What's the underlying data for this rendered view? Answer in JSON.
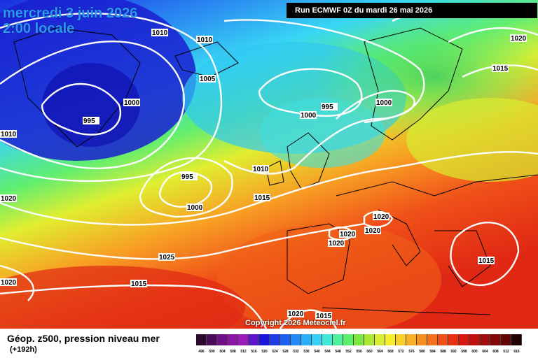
{
  "header": {
    "date_line": "mercredi 3 juin 2026",
    "time_line": "2:00 locale",
    "run_info": "Run ECMWF 0Z du mardi 26 mai 2026"
  },
  "copyright": "Copyright 2026 Meteociel.fr",
  "footer": {
    "title": "Géop. z500, pression niveau mer",
    "subtitle": "(+192h)"
  },
  "isobar_labels": [
    "1010",
    "1010",
    "1005",
    "1000",
    "995",
    "1000",
    "995",
    "1000",
    "1020",
    "1015",
    "1010",
    "995",
    "1000",
    "1015",
    "1010",
    "1020",
    "1020",
    "1020",
    "1020",
    "1020",
    "1025",
    "1015",
    "1020",
    "1015",
    "1015",
    "1020"
  ],
  "scale": {
    "values": [
      "496",
      "500",
      "504",
      "508",
      "512",
      "516",
      "520",
      "524",
      "528",
      "532",
      "536",
      "540",
      "544",
      "548",
      "552",
      "556",
      "560",
      "564",
      "568",
      "572",
      "576",
      "580",
      "584",
      "588",
      "592",
      "596",
      "600",
      "604",
      "608",
      "612",
      "616"
    ],
    "colors": [
      "#2b0a2e",
      "#4a0c5a",
      "#6e1086",
      "#8a16a8",
      "#9a1cb8",
      "#5a16c8",
      "#1a14d8",
      "#1e3ce8",
      "#2060f0",
      "#2488f5",
      "#2ab0f8",
      "#36d0f8",
      "#44e6d8",
      "#4ef0a0",
      "#5cee6a",
      "#7ee640",
      "#aae834",
      "#d8ee30",
      "#f4ee2c",
      "#f8d028",
      "#f8b024",
      "#f89020",
      "#f4701c",
      "#f05018",
      "#e83014",
      "#d81810",
      "#c0100e",
      "#a00c0c",
      "#800808",
      "#600404",
      "#200000"
    ]
  }
}
